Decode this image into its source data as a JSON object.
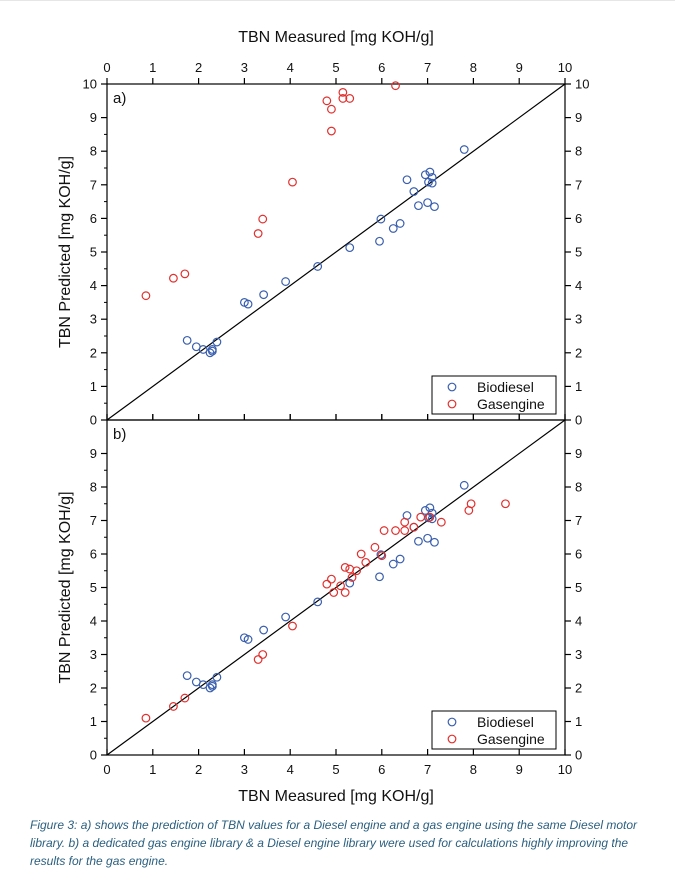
{
  "colors": {
    "biodiesel": "#3a5fae",
    "gasengine": "#e0302e",
    "axis": "#000000",
    "caption": "#2a5f7f"
  },
  "caption": "Figure 3: a) shows the prediction of TBN values for a Diesel engine and a gas engine using the same Diesel motor library. b) a dedicated gas engine library & a Diesel engine library were used for calculations highly improving the results for the gas engine.",
  "chart_data": [
    {
      "type": "scatter",
      "panel_label": "a)",
      "xlabel": "TBN Measured [mg KOH/g]",
      "xlabel_position": "top",
      "ylabel": "TBN Predicted [mg KOH/g]",
      "xlim": [
        0,
        10
      ],
      "ylim": [
        0,
        10
      ],
      "x_ticks": [
        "0",
        "1",
        "2",
        "3",
        "4",
        "5",
        "6",
        "7",
        "8",
        "9",
        "10"
      ],
      "y_ticks": [
        "0",
        "1",
        "2",
        "3",
        "4",
        "5",
        "6",
        "7",
        "8",
        "9",
        "10"
      ],
      "right_y_ticks": [
        "0",
        "1",
        "2",
        "3",
        "4",
        "5",
        "6",
        "7",
        "8",
        "9",
        "10"
      ],
      "reference_line": "y = x",
      "legend_position": "bottom-right",
      "series": [
        {
          "name": "Biodiesel",
          "points": [
            [
              1.75,
              2.37
            ],
            [
              1.95,
              2.18
            ],
            [
              2.1,
              2.1
            ],
            [
              2.25,
              2.0
            ],
            [
              2.3,
              2.05
            ],
            [
              2.4,
              2.32
            ],
            [
              2.3,
              2.1
            ],
            [
              3.0,
              3.5
            ],
            [
              3.08,
              3.45
            ],
            [
              3.42,
              3.73
            ],
            [
              3.9,
              4.12
            ],
            [
              4.6,
              4.57
            ],
            [
              5.3,
              5.13
            ],
            [
              5.95,
              5.32
            ],
            [
              5.98,
              5.98
            ],
            [
              6.25,
              5.7
            ],
            [
              6.4,
              5.85
            ],
            [
              6.55,
              7.15
            ],
            [
              6.7,
              6.8
            ],
            [
              6.8,
              6.38
            ],
            [
              6.95,
              7.3
            ],
            [
              7.0,
              6.47
            ],
            [
              7.05,
              7.38
            ],
            [
              7.1,
              7.22
            ],
            [
              7.02,
              7.08
            ],
            [
              7.1,
              7.05
            ],
            [
              7.15,
              6.35
            ],
            [
              7.8,
              8.05
            ]
          ]
        },
        {
          "name": "Gasengine",
          "points": [
            [
              0.85,
              3.7
            ],
            [
              1.45,
              4.22
            ],
            [
              1.7,
              4.35
            ],
            [
              3.3,
              5.55
            ],
            [
              3.4,
              5.98
            ],
            [
              4.05,
              7.08
            ],
            [
              4.8,
              9.5
            ],
            [
              4.9,
              9.25
            ],
            [
              4.9,
              8.6
            ],
            [
              5.15,
              9.75
            ],
            [
              5.15,
              9.57
            ],
            [
              5.3,
              9.57
            ],
            [
              6.3,
              9.95
            ]
          ]
        }
      ]
    },
    {
      "type": "scatter",
      "panel_label": "b)",
      "xlabel": "TBN Measured [mg KOH/g]",
      "xlabel_position": "bottom",
      "ylabel": "TBN Predicted [mg KOH/g]",
      "xlim": [
        0,
        10
      ],
      "ylim": [
        0,
        10
      ],
      "x_ticks": [
        "0",
        "1",
        "2",
        "3",
        "4",
        "5",
        "6",
        "7",
        "8",
        "9",
        "10"
      ],
      "y_ticks": [
        "0",
        "1",
        "2",
        "3",
        "4",
        "5",
        "6",
        "7",
        "8",
        "9"
      ],
      "right_y_ticks": [
        "0",
        "1",
        "2",
        "3",
        "4",
        "5",
        "6",
        "7",
        "8",
        "9"
      ],
      "reference_line": "y = x",
      "legend_position": "bottom-right",
      "series": [
        {
          "name": "Biodiesel",
          "points": [
            [
              1.75,
              2.37
            ],
            [
              1.95,
              2.18
            ],
            [
              2.1,
              2.1
            ],
            [
              2.25,
              2.0
            ],
            [
              2.3,
              2.05
            ],
            [
              2.4,
              2.32
            ],
            [
              2.3,
              2.1
            ],
            [
              3.0,
              3.5
            ],
            [
              3.08,
              3.45
            ],
            [
              3.42,
              3.73
            ],
            [
              3.9,
              4.12
            ],
            [
              4.6,
              4.57
            ],
            [
              5.3,
              5.13
            ],
            [
              5.95,
              5.32
            ],
            [
              5.98,
              5.98
            ],
            [
              6.25,
              5.7
            ],
            [
              6.4,
              5.85
            ],
            [
              6.55,
              7.15
            ],
            [
              6.7,
              6.8
            ],
            [
              6.8,
              6.38
            ],
            [
              6.95,
              7.3
            ],
            [
              7.0,
              6.47
            ],
            [
              7.05,
              7.38
            ],
            [
              7.1,
              7.22
            ],
            [
              7.02,
              7.08
            ],
            [
              7.1,
              7.05
            ],
            [
              7.15,
              6.35
            ],
            [
              7.8,
              8.05
            ]
          ]
        },
        {
          "name": "Gasengine",
          "points": [
            [
              0.85,
              1.1
            ],
            [
              1.45,
              1.45
            ],
            [
              1.7,
              1.7
            ],
            [
              3.3,
              2.85
            ],
            [
              3.4,
              3.0
            ],
            [
              4.05,
              3.85
            ],
            [
              4.8,
              5.1
            ],
            [
              4.9,
              5.25
            ],
            [
              4.95,
              4.85
            ],
            [
              5.1,
              5.05
            ],
            [
              5.2,
              4.85
            ],
            [
              5.2,
              5.6
            ],
            [
              5.3,
              5.55
            ],
            [
              5.35,
              5.3
            ],
            [
              5.45,
              5.5
            ],
            [
              5.55,
              6.0
            ],
            [
              5.65,
              5.75
            ],
            [
              5.85,
              6.2
            ],
            [
              6.0,
              5.95
            ],
            [
              6.05,
              6.7
            ],
            [
              6.3,
              6.7
            ],
            [
              6.5,
              6.7
            ],
            [
              6.5,
              6.95
            ],
            [
              6.7,
              6.8
            ],
            [
              6.85,
              7.1
            ],
            [
              7.05,
              7.1
            ],
            [
              7.3,
              6.95
            ],
            [
              7.9,
              7.3
            ],
            [
              7.95,
              7.5
            ],
            [
              8.7,
              7.5
            ]
          ]
        }
      ]
    }
  ]
}
